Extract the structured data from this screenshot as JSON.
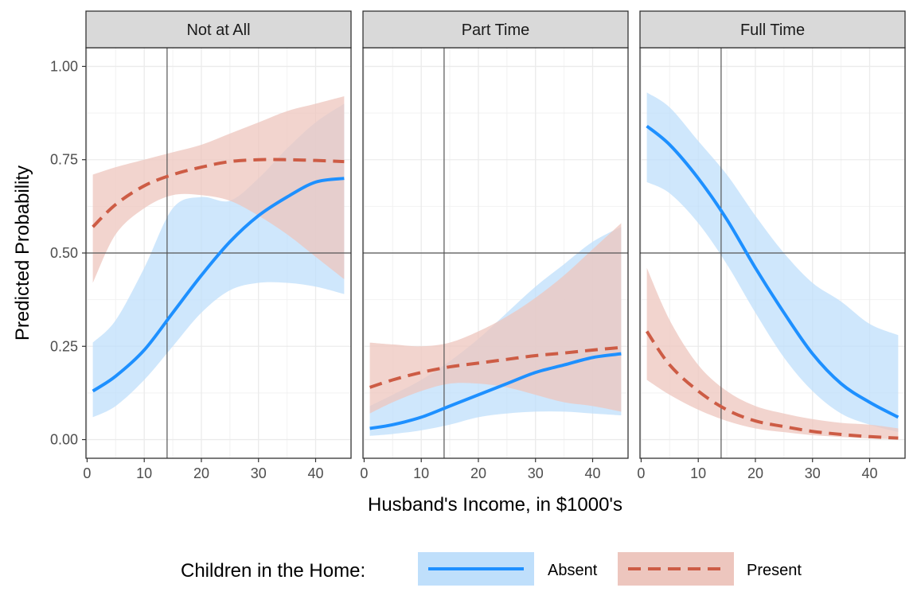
{
  "chart_data": {
    "type": "line",
    "xlabel": "Husband's Income, in $1000's",
    "ylabel": "Predicted Probability",
    "xlim": [
      -0.2,
      46.2
    ],
    "ylim": [
      -0.05,
      1.05
    ],
    "x_ticks": [
      0,
      10,
      20,
      30,
      40
    ],
    "x_tick_labels": [
      "0",
      "10",
      "20",
      "30",
      "40"
    ],
    "y_ticks": [
      0,
      0.25,
      0.5,
      0.75,
      1.0
    ],
    "y_tick_labels": [
      "0.00",
      "0.25",
      "0.50",
      "0.75",
      "1.00"
    ],
    "reference_lines": {
      "x": 14,
      "y": 0.5
    },
    "grid": true,
    "legend_position": "bottom",
    "legend_title": "Children in the Home:",
    "series_styles": [
      {
        "name": "Absent",
        "color": "#1E90FF",
        "fill": "#BFDFFB",
        "dash": "solid"
      },
      {
        "name": "Present",
        "color": "#CD5C45",
        "fill": "#EDC6BE",
        "dash": "dashed"
      }
    ],
    "panels": [
      {
        "title": "Not at All",
        "x": [
          1,
          5,
          10,
          15,
          20,
          25,
          30,
          35,
          40,
          45
        ],
        "series": [
          {
            "name": "Absent",
            "values": [
              0.13,
              0.17,
              0.24,
              0.34,
              0.44,
              0.53,
              0.6,
              0.65,
              0.69,
              0.7
            ],
            "lower": [
              0.06,
              0.09,
              0.16,
              0.25,
              0.34,
              0.4,
              0.42,
              0.42,
              0.41,
              0.39
            ],
            "upper": [
              0.26,
              0.32,
              0.46,
              0.62,
              0.65,
              0.64,
              0.7,
              0.78,
              0.85,
              0.9
            ]
          },
          {
            "name": "Present",
            "values": [
              0.57,
              0.63,
              0.68,
              0.71,
              0.73,
              0.745,
              0.75,
              0.75,
              0.748,
              0.745
            ],
            "lower": [
              0.42,
              0.55,
              0.62,
              0.655,
              0.655,
              0.64,
              0.6,
              0.55,
              0.49,
              0.43
            ],
            "upper": [
              0.71,
              0.73,
              0.75,
              0.77,
              0.79,
              0.82,
              0.85,
              0.88,
              0.9,
              0.92
            ]
          }
        ]
      },
      {
        "title": "Part Time",
        "x": [
          1,
          5,
          10,
          15,
          20,
          25,
          30,
          35,
          40,
          45
        ],
        "series": [
          {
            "name": "Absent",
            "values": [
              0.03,
              0.04,
              0.06,
              0.09,
              0.12,
              0.15,
              0.18,
              0.2,
              0.22,
              0.23
            ],
            "lower": [
              0.01,
              0.015,
              0.025,
              0.04,
              0.06,
              0.07,
              0.075,
              0.075,
              0.07,
              0.065
            ],
            "upper": [
              0.09,
              0.12,
              0.16,
              0.21,
              0.27,
              0.34,
              0.41,
              0.47,
              0.53,
              0.57
            ]
          },
          {
            "name": "Present",
            "values": [
              0.14,
              0.16,
              0.18,
              0.195,
              0.205,
              0.215,
              0.225,
              0.232,
              0.24,
              0.247
            ],
            "lower": [
              0.07,
              0.1,
              0.13,
              0.15,
              0.15,
              0.14,
              0.12,
              0.1,
              0.09,
              0.075
            ],
            "upper": [
              0.26,
              0.255,
              0.25,
              0.26,
              0.29,
              0.33,
              0.38,
              0.44,
              0.51,
              0.58
            ]
          }
        ]
      },
      {
        "title": "Full Time",
        "x": [
          1,
          5,
          10,
          15,
          20,
          25,
          30,
          35,
          40,
          45
        ],
        "series": [
          {
            "name": "Absent",
            "values": [
              0.84,
              0.79,
              0.7,
              0.59,
              0.46,
              0.34,
              0.23,
              0.15,
              0.1,
              0.06
            ],
            "lower": [
              0.69,
              0.66,
              0.58,
              0.47,
              0.34,
              0.22,
              0.13,
              0.07,
              0.04,
              0.02
            ],
            "upper": [
              0.93,
              0.89,
              0.8,
              0.71,
              0.6,
              0.5,
              0.42,
              0.37,
              0.31,
              0.28
            ]
          },
          {
            "name": "Present",
            "values": [
              0.29,
              0.2,
              0.13,
              0.08,
              0.05,
              0.035,
              0.022,
              0.014,
              0.008,
              0.004
            ],
            "lower": [
              0.16,
              0.12,
              0.08,
              0.05,
              0.03,
              0.02,
              0.012,
              0.007,
              0.003,
              0.001
            ],
            "upper": [
              0.46,
              0.32,
              0.2,
              0.13,
              0.09,
              0.07,
              0.055,
              0.045,
              0.04,
              0.03
            ]
          }
        ]
      }
    ]
  }
}
